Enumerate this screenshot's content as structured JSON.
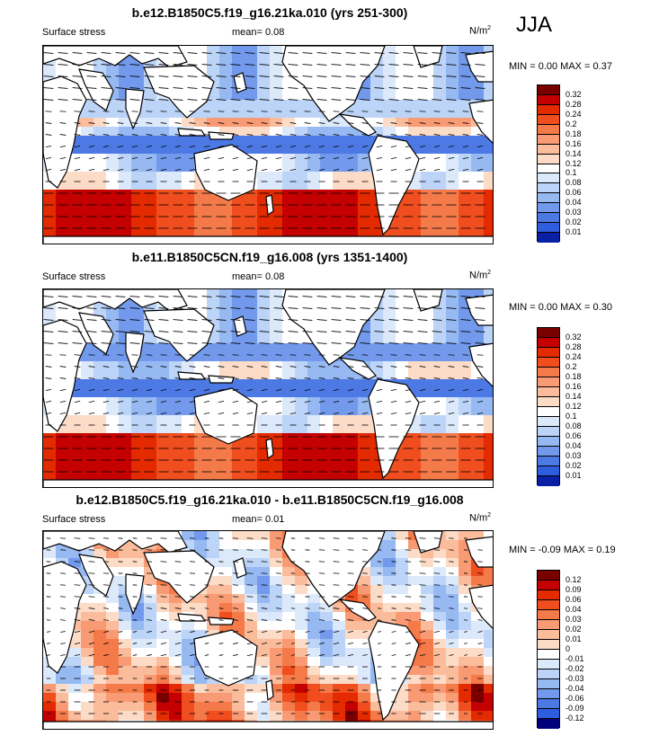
{
  "season": "JJA",
  "colors": {
    "ocean_pos_ramp": [
      "#7a0000",
      "#c40000",
      "#e32a00",
      "#f04e1e",
      "#f47a4a",
      "#f89a74",
      "#fbbc9c",
      "#fddcc7"
    ],
    "ocean_neg_ramp": [
      "#dce9fb",
      "#bcd4f7",
      "#97b9f2",
      "#7399ec",
      "#4d79e5",
      "#2f5ddf",
      "#1a3fcf",
      "#0a1fa3",
      "#00007a"
    ],
    "land": "#ffffff",
    "coast": "#000000"
  },
  "panels": [
    {
      "title": "b.e12.B1850C5.f19_g16.21ka.010 (yrs 251-300)",
      "left_label": "Surface stress",
      "mean_text": "mean=  0.08",
      "units_base": "N/m",
      "units_sup": "2",
      "minmax_text": "MIN =  0.00 MAX =  0.37",
      "colorbar_ticks": [
        "0.32",
        "0.28",
        "0.24",
        "0.2",
        "0.18",
        "0.16",
        "0.14",
        "0.12",
        "0.1",
        "0.08",
        "0.06",
        "0.04",
        "0.03",
        "0.02",
        "0.01"
      ],
      "colorbar_colors": [
        "#7a0000",
        "#c40000",
        "#e32a00",
        "#f04e1e",
        "#f47a4a",
        "#f89a74",
        "#fbbc9c",
        "#fddcc7",
        "#ffffff",
        "#dce9fb",
        "#bcd4f7",
        "#97b9f2",
        "#7399ec",
        "#4d79e5",
        "#2f5ddf",
        "#0a1fa3"
      ]
    },
    {
      "title": "b.e11.B1850C5CN.f19_g16.008 (yrs 1351-1400)",
      "left_label": "Surface stress",
      "mean_text": "mean=  0.08",
      "units_base": "N/m",
      "units_sup": "2",
      "minmax_text": "MIN =  0.00 MAX =  0.30",
      "colorbar_ticks": [
        "0.32",
        "0.28",
        "0.24",
        "0.2",
        "0.18",
        "0.16",
        "0.14",
        "0.12",
        "0.1",
        "0.08",
        "0.06",
        "0.04",
        "0.03",
        "0.02",
        "0.01"
      ],
      "colorbar_colors": [
        "#7a0000",
        "#c40000",
        "#e32a00",
        "#f04e1e",
        "#f47a4a",
        "#f89a74",
        "#fbbc9c",
        "#fddcc7",
        "#ffffff",
        "#dce9fb",
        "#bcd4f7",
        "#97b9f2",
        "#7399ec",
        "#4d79e5",
        "#2f5ddf",
        "#0a1fa3"
      ]
    },
    {
      "title": "b.e12.B1850C5.f19_g16.21ka.010 - b.e11.B1850C5CN.f19_g16.008",
      "left_label": "Surface stress",
      "mean_text": "mean=  0.01",
      "units_base": "N/m",
      "units_sup": "2",
      "minmax_text": "MIN = -0.09 MAX =  0.19",
      "colorbar_ticks": [
        "0.12",
        "0.09",
        "0.06",
        "0.04",
        "0.03",
        "0.02",
        "0.01",
        "0",
        "-0.01",
        "-0.02",
        "-0.03",
        "-0.04",
        "-0.06",
        "-0.09",
        "-0.12"
      ],
      "colorbar_colors": [
        "#7a0000",
        "#c40000",
        "#e32a00",
        "#f04e1e",
        "#f47a4a",
        "#f89a74",
        "#fbbc9c",
        "#fddcc7",
        "#ffffff",
        "#dce9fb",
        "#bcd4f7",
        "#97b9f2",
        "#7399ec",
        "#4d79e5",
        "#2f5ddf",
        "#00007a"
      ]
    }
  ],
  "chart_data": [
    {
      "type": "heatmap",
      "title": "b.e12.B1850C5.f19_g16.21ka.010 (yrs 251-300)",
      "variable": "Surface stress",
      "season": "JJA",
      "units": "N/m2",
      "mean": 0.08,
      "min": 0.0,
      "max": 0.37,
      "levels": [
        0.01,
        0.02,
        0.03,
        0.04,
        0.06,
        0.08,
        0.1,
        0.12,
        0.14,
        0.16,
        0.18,
        0.2,
        0.24,
        0.28,
        0.32
      ],
      "x": "longitude 0-360",
      "y": "latitude -90 to 90",
      "overlay": "wind stress vectors"
    },
    {
      "type": "heatmap",
      "title": "b.e11.B1850C5CN.f19_g16.008 (yrs 1351-1400)",
      "variable": "Surface stress",
      "season": "JJA",
      "units": "N/m2",
      "mean": 0.08,
      "min": 0.0,
      "max": 0.3,
      "levels": [
        0.01,
        0.02,
        0.03,
        0.04,
        0.06,
        0.08,
        0.1,
        0.12,
        0.14,
        0.16,
        0.18,
        0.2,
        0.24,
        0.28,
        0.32
      ],
      "x": "longitude 0-360",
      "y": "latitude -90 to 90",
      "overlay": "wind stress vectors"
    },
    {
      "type": "heatmap",
      "title": "b.e12.B1850C5.f19_g16.21ka.010 - b.e11.B1850C5CN.f19_g16.008",
      "variable": "Surface stress",
      "season": "JJA",
      "units": "N/m2",
      "mean": 0.01,
      "min": -0.09,
      "max": 0.19,
      "levels": [
        -0.12,
        -0.09,
        -0.06,
        -0.04,
        -0.03,
        -0.02,
        -0.01,
        0,
        0.01,
        0.02,
        0.03,
        0.04,
        0.06,
        0.09,
        0.12
      ],
      "x": "longitude 0-360",
      "y": "latitude -90 to 90",
      "overlay": "wind stress difference vectors"
    }
  ]
}
